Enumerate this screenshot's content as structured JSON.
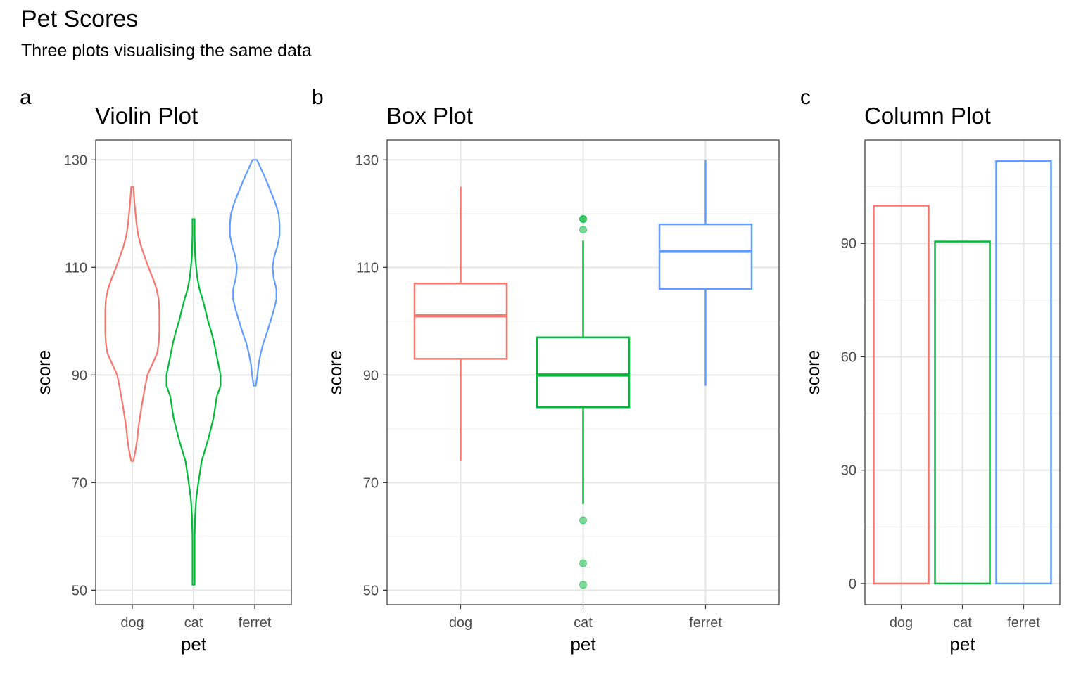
{
  "title": "Pet Scores",
  "subtitle": "Three plots visualising the same data",
  "colors": {
    "dog": "#F8766D",
    "cat": "#00BA38",
    "ferret": "#619CFF"
  },
  "chart_data": [
    {
      "tag": "a",
      "type": "violin",
      "title": "Violin Plot",
      "xlabel": "pet",
      "ylabel": "score",
      "categories": [
        "dog",
        "cat",
        "ferret"
      ],
      "ylim": [
        47.3,
        133.7
      ],
      "yticks": [
        50,
        70,
        90,
        110,
        130
      ],
      "grid": true,
      "series": [
        {
          "category": "dog",
          "color": "#F8766D",
          "profile": [
            [
              74,
              0.02
            ],
            [
              76,
              0.06
            ],
            [
              78,
              0.09
            ],
            [
              80,
              0.11
            ],
            [
              84,
              0.17
            ],
            [
              88,
              0.24
            ],
            [
              90,
              0.28
            ],
            [
              92,
              0.37
            ],
            [
              94,
              0.46
            ],
            [
              96,
              0.49
            ],
            [
              98,
              0.5
            ],
            [
              100,
              0.5
            ],
            [
              102,
              0.5
            ],
            [
              104,
              0.49
            ],
            [
              106,
              0.45
            ],
            [
              108,
              0.38
            ],
            [
              110,
              0.3
            ],
            [
              112,
              0.23
            ],
            [
              114,
              0.16
            ],
            [
              116,
              0.11
            ],
            [
              118,
              0.08
            ],
            [
              120,
              0.06
            ],
            [
              122,
              0.04
            ],
            [
              125,
              0.02
            ]
          ]
        },
        {
          "category": "cat",
          "color": "#00BA38",
          "profile": [
            [
              51,
              0.02
            ],
            [
              56,
              0.02
            ],
            [
              60,
              0.02
            ],
            [
              64,
              0.03
            ],
            [
              67,
              0.05
            ],
            [
              70,
              0.09
            ],
            [
              74,
              0.15
            ],
            [
              78,
              0.27
            ],
            [
              82,
              0.37
            ],
            [
              86,
              0.43
            ],
            [
              88,
              0.5
            ],
            [
              90,
              0.5
            ],
            [
              92,
              0.46
            ],
            [
              94,
              0.42
            ],
            [
              96,
              0.38
            ],
            [
              98,
              0.33
            ],
            [
              100,
              0.27
            ],
            [
              102,
              0.22
            ],
            [
              104,
              0.17
            ],
            [
              106,
              0.11
            ],
            [
              108,
              0.07
            ],
            [
              110,
              0.05
            ],
            [
              112,
              0.03
            ],
            [
              116,
              0.02
            ],
            [
              119,
              0.02
            ]
          ]
        },
        {
          "category": "ferret",
          "color": "#619CFF",
          "profile": [
            [
              88,
              0.02
            ],
            [
              90,
              0.05
            ],
            [
              92,
              0.07
            ],
            [
              94,
              0.11
            ],
            [
              96,
              0.16
            ],
            [
              98,
              0.23
            ],
            [
              100,
              0.29
            ],
            [
              102,
              0.35
            ],
            [
              104,
              0.4
            ],
            [
              106,
              0.4
            ],
            [
              108,
              0.35
            ],
            [
              110,
              0.33
            ],
            [
              112,
              0.36
            ],
            [
              114,
              0.42
            ],
            [
              116,
              0.46
            ],
            [
              118,
              0.46
            ],
            [
              120,
              0.44
            ],
            [
              122,
              0.38
            ],
            [
              124,
              0.3
            ],
            [
              126,
              0.22
            ],
            [
              128,
              0.13
            ],
            [
              130,
              0.04
            ]
          ]
        }
      ]
    },
    {
      "tag": "b",
      "type": "box",
      "title": "Box Plot",
      "xlabel": "pet",
      "ylabel": "score",
      "categories": [
        "dog",
        "cat",
        "ferret"
      ],
      "ylim": [
        47.3,
        133.7
      ],
      "yticks": [
        50,
        70,
        90,
        110,
        130
      ],
      "grid": true,
      "series": [
        {
          "category": "dog",
          "color": "#F8766D",
          "min": 74,
          "q1": 93,
          "median": 101,
          "q3": 107,
          "max": 125,
          "outliers": []
        },
        {
          "category": "cat",
          "color": "#00BA38",
          "min": 66,
          "q1": 84,
          "median": 90,
          "q3": 97,
          "max": 115,
          "outliers": [
            51,
            55,
            63,
            117,
            119,
            119
          ]
        },
        {
          "category": "ferret",
          "color": "#619CFF",
          "min": 88,
          "q1": 106,
          "median": 113,
          "q3": 118,
          "max": 130,
          "outliers": []
        }
      ]
    },
    {
      "tag": "c",
      "type": "bar",
      "title": "Column Plot",
      "xlabel": "pet",
      "ylabel": "score",
      "categories": [
        "dog",
        "cat",
        "ferret"
      ],
      "values": [
        100,
        90.5,
        111.8
      ],
      "ylim": [
        -5.6,
        117.4
      ],
      "yticks": [
        0,
        30,
        60,
        90
      ],
      "grid": true,
      "colors": [
        "#F8766D",
        "#00BA38",
        "#619CFF"
      ]
    }
  ]
}
